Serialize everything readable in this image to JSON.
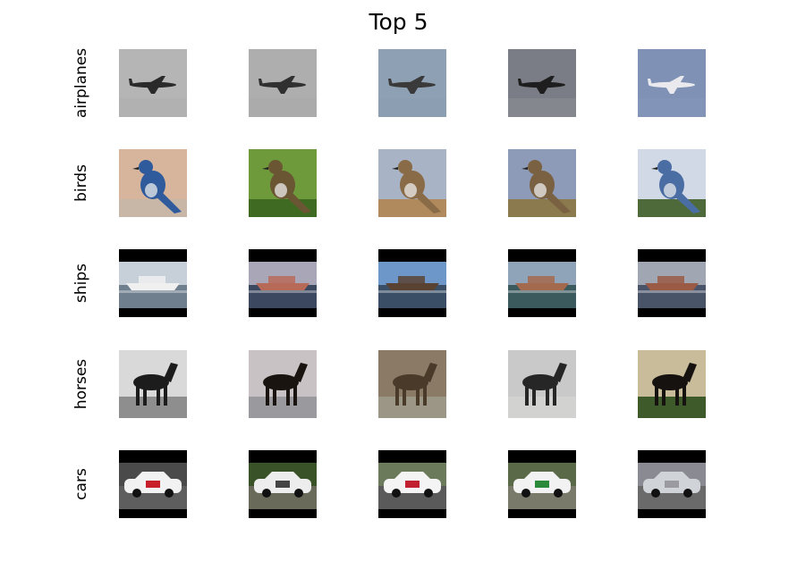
{
  "title": "Top 5",
  "rows": [
    {
      "label": "airplanes",
      "thumbs": [
        {
          "subject": "airliner",
          "sky": "#b5b5b5",
          "ground": "#a9a9a9",
          "body": "#2a2a2a"
        },
        {
          "subject": "airliner",
          "sky": "#aeaeae",
          "ground": "#a5a5a5",
          "body": "#303030"
        },
        {
          "subject": "airliner",
          "sky": "#8ea0b4",
          "ground": "#8a9ab0",
          "body": "#3a3a3a"
        },
        {
          "subject": "airliner",
          "sky": "#7a7d85",
          "ground": "#9a9ca2",
          "body": "#1e1e1e"
        },
        {
          "subject": "airliner",
          "sky": "#7f92b6",
          "ground": "#8a9cc0",
          "body": "#e9e9ee"
        }
      ]
    },
    {
      "label": "birds",
      "thumbs": [
        {
          "subject": "bird",
          "sky": "#d7b59c",
          "ground": "#c8b7a6",
          "body": "#2f5a9c"
        },
        {
          "subject": "bird",
          "sky": "#6e9a3c",
          "ground": "#3f6a22",
          "body": "#6b5634"
        },
        {
          "subject": "bird",
          "sky": "#a9b3c6",
          "ground": "#b08a5c",
          "body": "#8a6b47"
        },
        {
          "subject": "bird",
          "sky": "#8d9bb8",
          "ground": "#8a7a4e",
          "body": "#7a6142"
        },
        {
          "subject": "bird",
          "sky": "#d2d9e6",
          "ground": "#4f6a3a",
          "body": "#4a6da4"
        }
      ]
    },
    {
      "label": "ships",
      "thumbs": [
        {
          "subject": "ship",
          "sky": "#c7cfd8",
          "ground": "#6f7f8e",
          "body": "#f0f0f0",
          "bars": true
        },
        {
          "subject": "ship",
          "sky": "#a9a6b8",
          "ground": "#3c4860",
          "body": "#b86a58",
          "bars": true
        },
        {
          "subject": "ship",
          "sky": "#6e97c9",
          "ground": "#3a4e66",
          "body": "#5a4232",
          "bars": true
        },
        {
          "subject": "ship",
          "sky": "#8fa4b8",
          "ground": "#3b5a5e",
          "body": "#a46a4e",
          "bars": true
        },
        {
          "subject": "ship",
          "sky": "#a1a7b2",
          "ground": "#4a5468",
          "body": "#9a5a44",
          "bars": true
        }
      ]
    },
    {
      "label": "horses",
      "thumbs": [
        {
          "subject": "horse",
          "sky": "#d9d9d9",
          "ground": "#8e8e8e",
          "body": "#1c1c1c"
        },
        {
          "subject": "horse",
          "sky": "#c9c2c4",
          "ground": "#9a9a9e",
          "body": "#1a1410"
        },
        {
          "subject": "horse",
          "sky": "#8a7a66",
          "ground": "#9c9686",
          "body": "#4a3a2a"
        },
        {
          "subject": "horse",
          "sky": "#c9c9c9",
          "ground": "#d2d2d0",
          "body": "#262626"
        },
        {
          "subject": "horse",
          "sky": "#c8bc9a",
          "ground": "#3e5a2a",
          "body": "#161210"
        }
      ]
    },
    {
      "label": "cars",
      "thumbs": [
        {
          "subject": "car",
          "sky": "#4a4a4a",
          "ground": "#5e5e5e",
          "body": "#f2f2f2",
          "accent": "#c8202a",
          "bars": true
        },
        {
          "subject": "car",
          "sky": "#3a5228",
          "ground": "#6a6a5a",
          "body": "#ededed",
          "accent": "#444444",
          "bars": true
        },
        {
          "subject": "car",
          "sky": "#6a7a5a",
          "ground": "#5a5a5a",
          "body": "#f4f4f4",
          "accent": "#c02030",
          "bars": true
        },
        {
          "subject": "car",
          "sky": "#5a6a48",
          "ground": "#7a7a6a",
          "body": "#f2f2f2",
          "accent": "#2a8a3a",
          "bars": true
        },
        {
          "subject": "car",
          "sky": "#8a8a92",
          "ground": "#6a6a6a",
          "body": "#d0d3d8",
          "accent": "#9a9aa0",
          "bars": true
        }
      ]
    }
  ]
}
